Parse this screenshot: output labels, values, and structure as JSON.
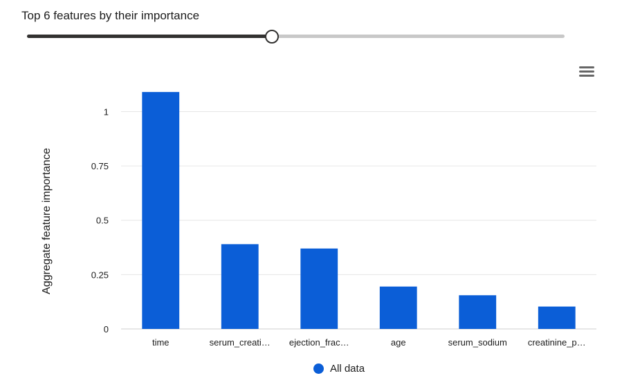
{
  "slider": {
    "label": "Top 6 features by their importance",
    "value_fraction": 0.455
  },
  "menu": {
    "icon": "hamburger-menu-icon"
  },
  "chart_data": {
    "type": "bar",
    "categories": [
      "time",
      "serum_creati…",
      "ejection_frac…",
      "age",
      "serum_sodium",
      "creatinine_p…"
    ],
    "series": [
      {
        "name": "All data",
        "values": [
          1.09,
          0.39,
          0.37,
          0.195,
          0.155,
          0.103
        ],
        "color": "#0b5ed7"
      }
    ],
    "xlabel": "",
    "ylabel": "Aggregate feature importance",
    "ylim": [
      0,
      1.1
    ],
    "yticks": [
      0,
      0.25,
      0.5,
      0.75,
      1
    ],
    "ytick_labels": [
      "0",
      "0.25",
      "0.5",
      "0.75",
      "1"
    ],
    "grid": true,
    "legend": "bottom-center"
  }
}
